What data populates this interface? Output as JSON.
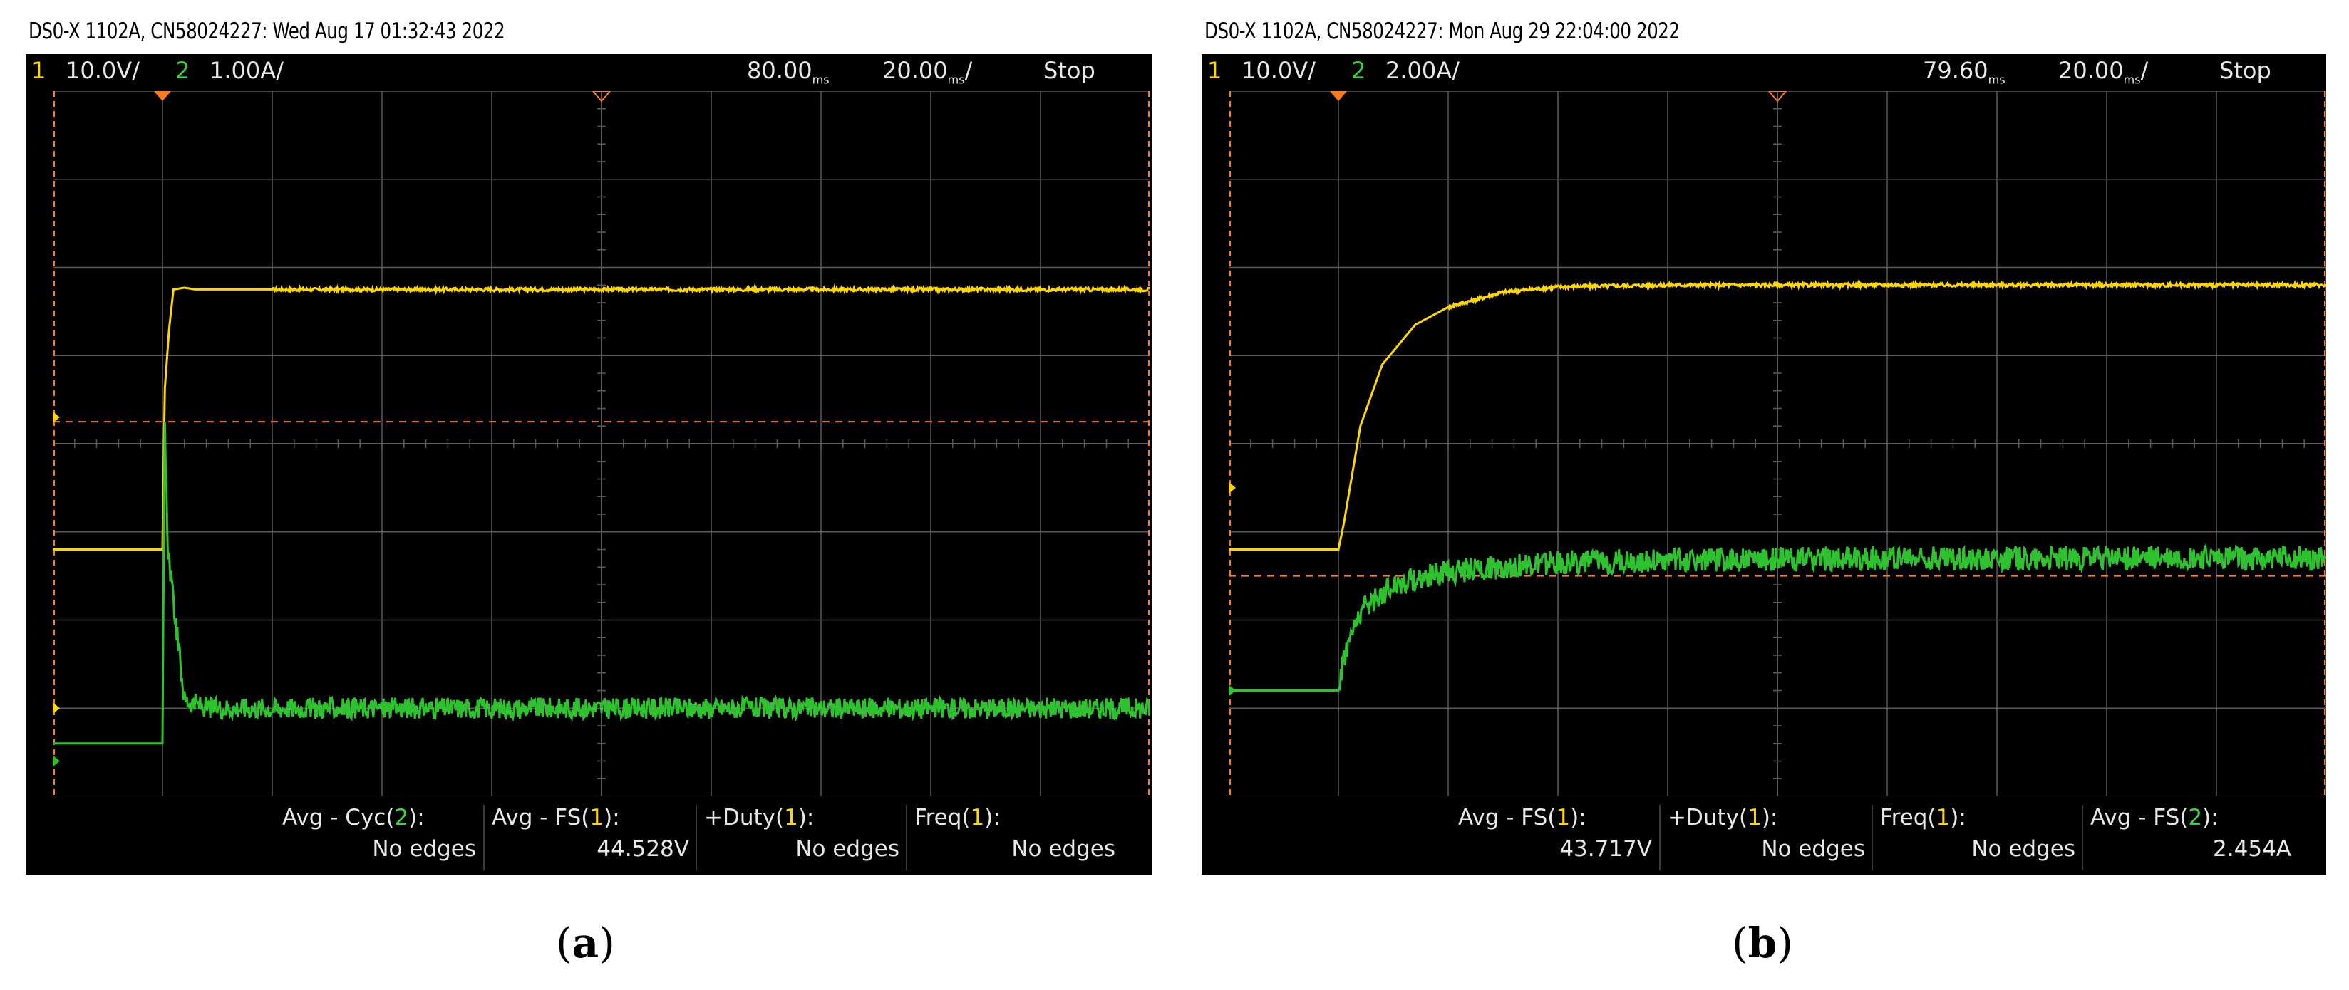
{
  "panels": [
    {
      "header": "DS0-X 1102A, CN58024227: Wed Aug 17 01:32:43 2022",
      "status": {
        "ch1_num": "1",
        "ch1_scale": "10.0V/",
        "ch2_num": "2",
        "ch2_scale": "1.00A/",
        "trigger_pos": "80.00",
        "time_scale": "20.00",
        "unit_sub": "ms",
        "run_state": "Stop"
      },
      "marker_labels": {
        "trig": "T",
        "ch1": "1",
        "ch2": "2"
      },
      "measurements": [
        {
          "label_pre": "Avg - Cyc(",
          "label_ch": "2",
          "label_post": "):",
          "value": "No edges"
        },
        {
          "label_pre": "Avg - FS(",
          "label_ch": "1",
          "label_post": "):",
          "value": "44.528V"
        },
        {
          "label_pre": "+Duty(",
          "label_ch": "1",
          "label_post": "):",
          "value": "No edges"
        },
        {
          "label_pre": "Freq(",
          "label_ch": "1",
          "label_post": "):",
          "value": "No edges"
        }
      ],
      "caption_letter": "a"
    },
    {
      "header": "DS0-X 1102A, CN58024227: Mon Aug 29 22:04:00 2022",
      "status": {
        "ch1_num": "1",
        "ch1_scale": "10.0V/",
        "ch2_num": "2",
        "ch2_scale": "2.00A/",
        "trigger_pos": "79.60",
        "time_scale": "20.00",
        "unit_sub": "ms",
        "run_state": "Stop"
      },
      "marker_labels": {
        "trig": "T",
        "ch1": "1",
        "ch2": "2"
      },
      "measurements": [
        {
          "label_pre": "Avg - FS(",
          "label_ch": "1",
          "label_post": "):",
          "value": "43.717V"
        },
        {
          "label_pre": "+Duty(",
          "label_ch": "1",
          "label_post": "):",
          "value": "No edges"
        },
        {
          "label_pre": "Freq(",
          "label_ch": "1",
          "label_post": "):",
          "value": "No edges"
        },
        {
          "label_pre": "Avg - FS(",
          "label_ch": "2",
          "label_post": "):",
          "value": "2.454A"
        }
      ],
      "caption_letter": "b"
    }
  ],
  "chart_data": [
    {
      "type": "line",
      "x_unit": "divisions",
      "xlim": [
        0,
        10
      ],
      "ylim": [
        -4,
        4
      ],
      "grid": true,
      "colors": {
        "ch1": "#ffd700",
        "ch2": "#2fc22f",
        "ref": "#ff7a1a",
        "grid": "#5a5a5a"
      },
      "series": [
        {
          "name": "1",
          "x": [
            0,
            1.0,
            1.02,
            1.06,
            1.1,
            1.2,
            1.3,
            10
          ],
          "y": [
            -1.2,
            -1.2,
            0.6,
            1.3,
            1.75,
            1.77,
            1.75,
            1.75
          ]
        },
        {
          "name": "2",
          "x": [
            0,
            1.0,
            1.02,
            1.05,
            1.1,
            1.2,
            1.4,
            10
          ],
          "y": [
            -3.4,
            -3.4,
            0.2,
            -1.2,
            -1.8,
            -2.9,
            -3.0,
            -3.0
          ],
          "noise_amplitude": 0.12
        }
      ],
      "reference_level": 0.25,
      "trigger_level": 0.3,
      "ch1_ground": -3.0,
      "ch2_ground": -3.6,
      "trigger_time": 1.0
    },
    {
      "type": "line",
      "x_unit": "divisions",
      "xlim": [
        0,
        10
      ],
      "ylim": [
        -4,
        4
      ],
      "grid": true,
      "colors": {
        "ch1": "#ffd700",
        "ch2": "#2fc22f",
        "ref": "#ff7a1a",
        "grid": "#5a5a5a"
      },
      "series": [
        {
          "name": "1",
          "x": [
            0,
            1.0,
            1.05,
            1.2,
            1.4,
            1.7,
            2.0,
            2.5,
            3.0,
            4.0,
            6.0,
            8.0,
            10
          ],
          "y": [
            -1.2,
            -1.2,
            -0.9,
            0.2,
            0.9,
            1.35,
            1.55,
            1.72,
            1.78,
            1.8,
            1.8,
            1.8,
            1.8
          ]
        },
        {
          "name": "2",
          "x": [
            0,
            1.0,
            1.05,
            1.2,
            1.5,
            2.0,
            2.5,
            3.0,
            4.0,
            6.0,
            8.0,
            10
          ],
          "y": [
            -2.8,
            -2.8,
            -2.4,
            -1.9,
            -1.6,
            -1.45,
            -1.4,
            -1.35,
            -1.32,
            -1.3,
            -1.3,
            -1.3
          ],
          "noise_amplitude": 0.14
        }
      ],
      "reference_level": -1.5,
      "trigger_level": -0.5,
      "ch1_ground": -2.8,
      "ch2_ground": -2.8,
      "trigger_time": 1.0
    }
  ]
}
